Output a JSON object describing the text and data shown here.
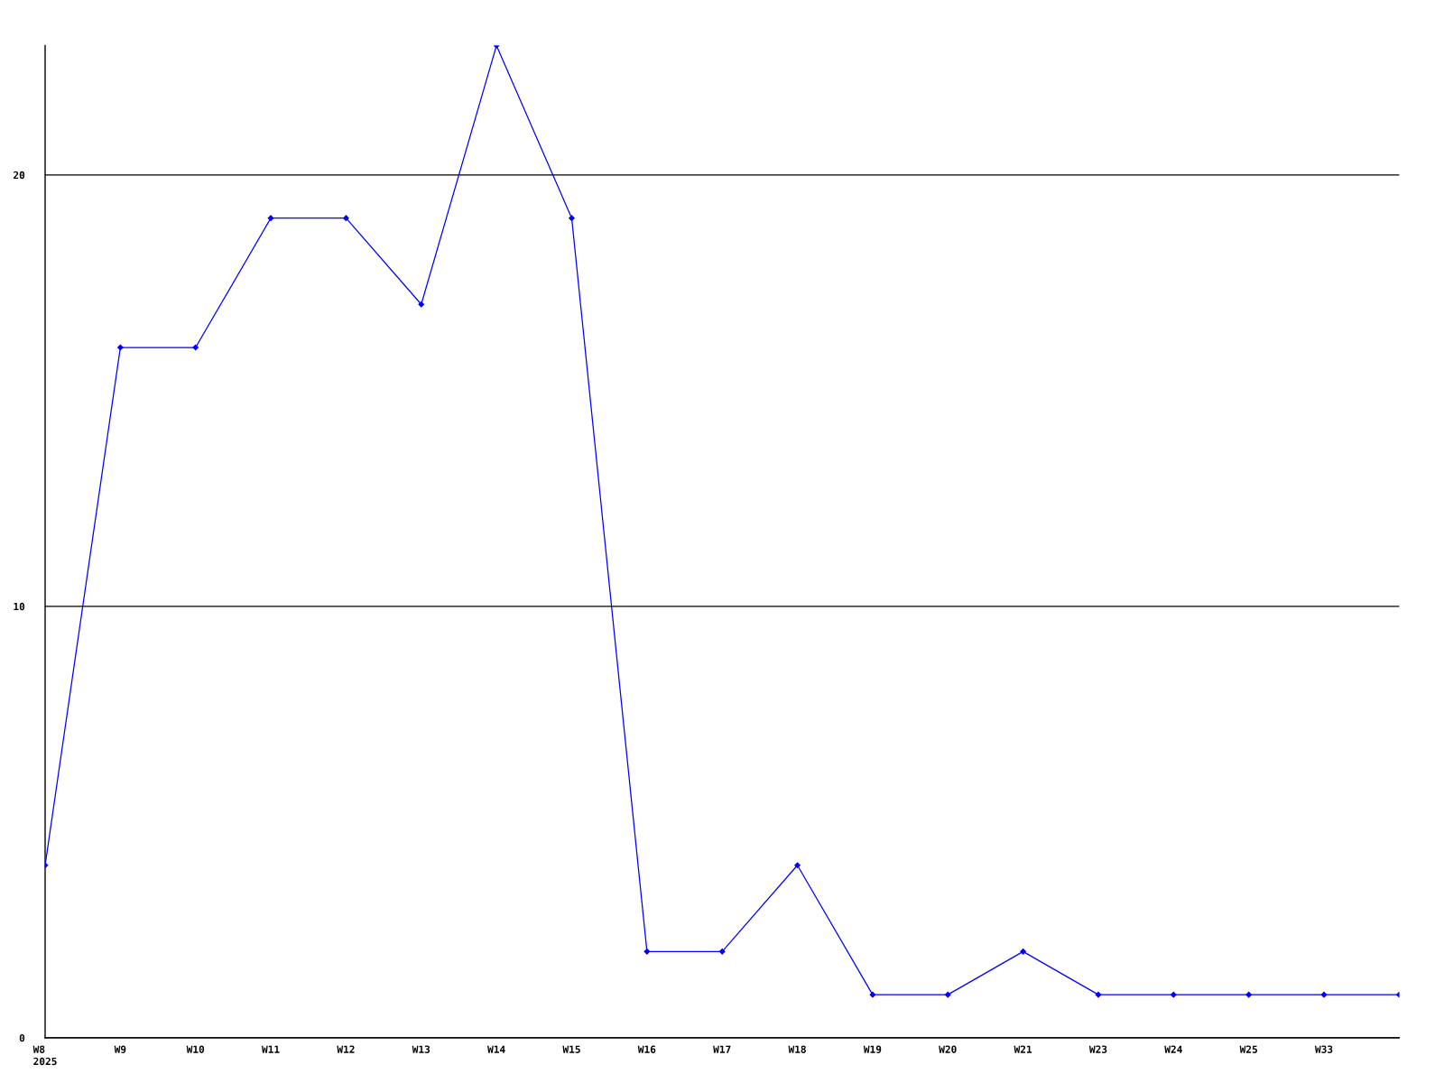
{
  "chart_data": {
    "type": "line",
    "categories": [
      "W8\n2025",
      "W9",
      "W10",
      "W11",
      "W12",
      "W13",
      "W14",
      "W15",
      "W16",
      "W17",
      "W18",
      "W19",
      "W20",
      "W21",
      "W23",
      "W24",
      "W25",
      "W33",
      null
    ],
    "series": [
      {
        "color": "#0000ff",
        "values": [
          4,
          16,
          16,
          19,
          19,
          17,
          23,
          19,
          2,
          2,
          4,
          1,
          1,
          2,
          1,
          1,
          1,
          1,
          1
        ]
      }
    ],
    "ylim": [
      0,
      23
    ],
    "yticks": [
      0,
      10,
      20
    ],
    "grid": "y",
    "marker": "diamond",
    "line_style": "solid"
  }
}
